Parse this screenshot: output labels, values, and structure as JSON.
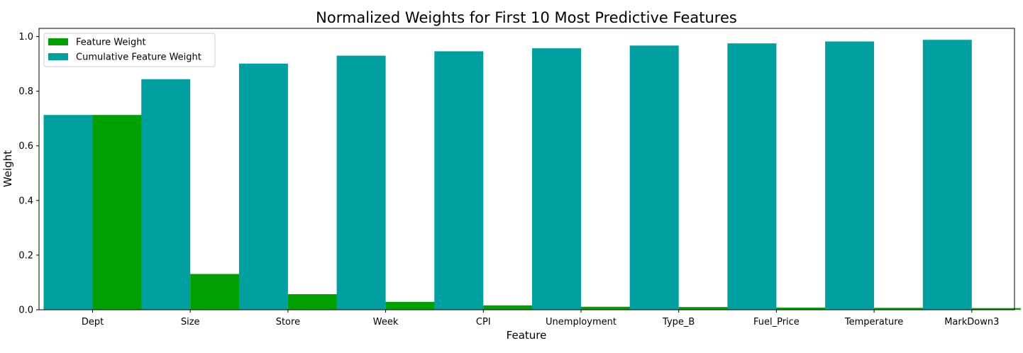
{
  "chart_data": {
    "type": "bar",
    "title": "Normalized Weights for First 10 Most Predictive Features",
    "xlabel": "Feature",
    "ylabel": "Weight",
    "categories": [
      "Dept",
      "Size",
      "Store",
      "Week",
      "CPI",
      "Unemployment",
      "Type_B",
      "Fuel_Price",
      "Temperature",
      "MarkDown3"
    ],
    "series": [
      {
        "name": "Feature Weight",
        "color": "#00a000",
        "values": [
          0.713,
          0.131,
          0.057,
          0.029,
          0.016,
          0.011,
          0.01,
          0.008,
          0.007,
          0.006
        ]
      },
      {
        "name": "Cumulative Feature Weight",
        "color": "#00a0a0",
        "values": [
          0.713,
          0.844,
          0.901,
          0.93,
          0.946,
          0.957,
          0.967,
          0.975,
          0.982,
          0.988
        ]
      }
    ],
    "ylim": [
      0,
      1.03
    ],
    "yticks": [
      "0.0",
      "0.2",
      "0.4",
      "0.6",
      "0.8",
      "1.0"
    ],
    "grid": false,
    "legend_position": "top-left"
  }
}
